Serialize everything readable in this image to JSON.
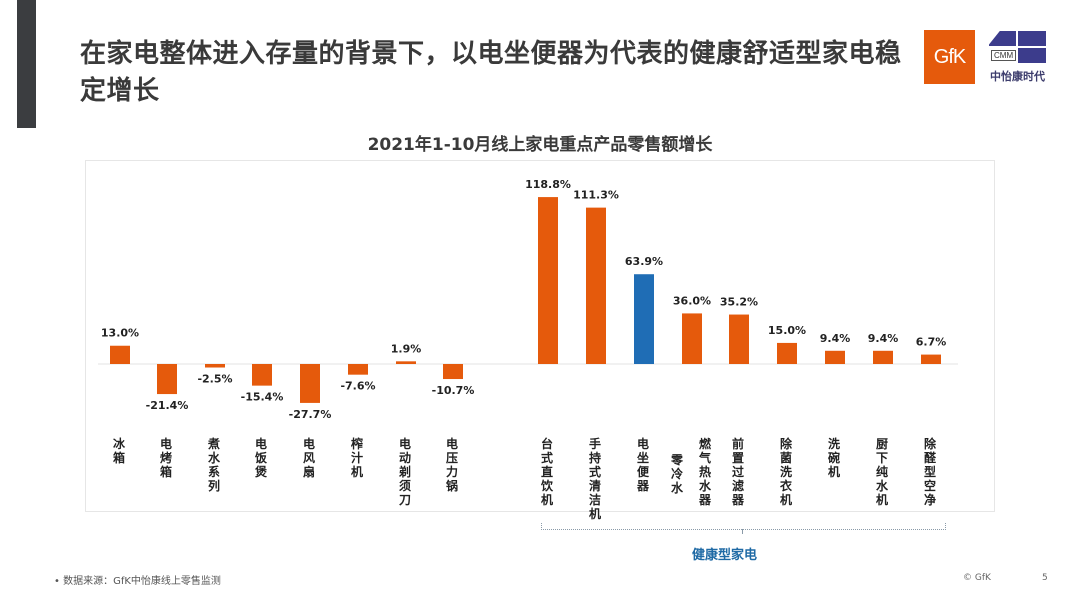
{
  "slide": {
    "title": "在家电整体进入存量的背景下，以电坐便器为代表的健康舒适型家电稳定增长",
    "logos": {
      "gfk": "GfK",
      "cmm": "CMM",
      "cmm_cn": "中怡康时代"
    },
    "footer": {
      "source": "• 数据来源：GfK中怡康线上零售监测",
      "copyright": "© GfK",
      "page": "5"
    },
    "group_label": "健康型家电"
  },
  "colors": {
    "orange": "#e55a0c",
    "blue": "#1f6db5",
    "accent": "#3b3d40"
  },
  "chart_data": {
    "type": "bar",
    "title": "2021年1-10月线上家电重点产品零售额增长",
    "xlabel": "",
    "ylabel": "",
    "grid": false,
    "categories": [
      "冰箱",
      "电烤箱",
      "煮水系列",
      "电饭煲",
      "电风扇",
      "榨汁机",
      "电动剃须刀",
      "电压力锅",
      "台式直饮机",
      "手持式清洁机",
      "电坐便器",
      "零冷水",
      "燃气热水器",
      "前置过滤器",
      "除菌洗衣机",
      "洗碗机",
      "厨下纯水机",
      "除醛型空净"
    ],
    "values": [
      13.0,
      -21.4,
      -2.5,
      -15.4,
      -27.7,
      -7.6,
      1.9,
      -10.7,
      118.8,
      111.3,
      63.9,
      36.0,
      35.2,
      15.0,
      9.4,
      9.4,
      6.7
    ],
    "labels": [
      "13.0%",
      "-21.4%",
      "-2.5%",
      "-15.4%",
      "-27.7%",
      "-7.6%",
      "1.9%",
      "-10.7%",
      "118.8%",
      "111.3%",
      "63.9%",
      "36.0%",
      "35.2%",
      "15.0%",
      "9.4%",
      "9.4%",
      "6.7%"
    ],
    "bar_categories": [
      "冰箱",
      "电烤箱",
      "煮水系列",
      "电饭煲",
      "电风扇",
      "榨汁机",
      "电动剃须刀",
      "电压力锅",
      "台式直饮机",
      "手持式清洁机",
      "电坐便器",
      "燃气热水器",
      "前置过滤器",
      "除菌洗衣机",
      "洗碗机",
      "厨下纯水机",
      "除醛型空净"
    ],
    "highlight": "电坐便器",
    "ylim": [
      -30,
      120
    ],
    "unit": "%"
  }
}
